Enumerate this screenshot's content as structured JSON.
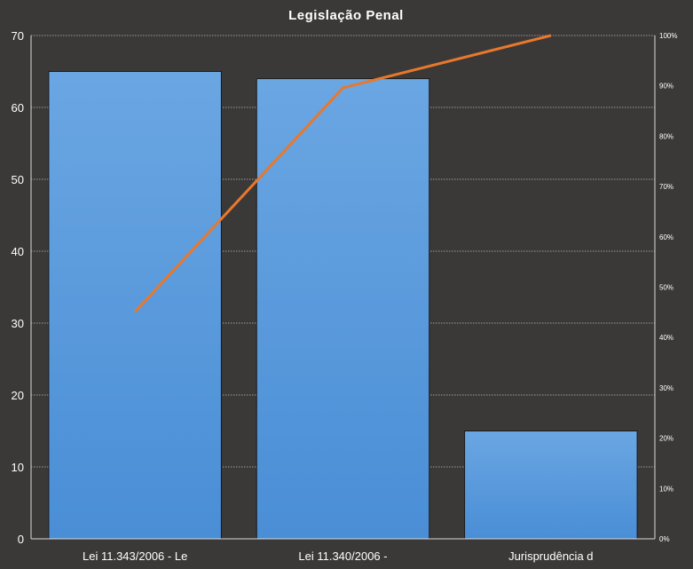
{
  "chart_data": {
    "type": "bar",
    "title": "Legislação Penal",
    "categories": [
      "Lei 11.343/2006 - Le",
      "Lei 11.340/2006 -",
      "Jurisprudência d"
    ],
    "series": [
      {
        "type": "bar",
        "axis": "left",
        "values": [
          65,
          64,
          15
        ]
      },
      {
        "type": "line",
        "axis": "right",
        "values": [
          45.1,
          89.6,
          100
        ]
      }
    ],
    "ylim": [
      0,
      70
    ],
    "yticks": [
      "0",
      "10",
      "20",
      "30",
      "40",
      "50",
      "60",
      "70"
    ],
    "y2lim": [
      0,
      100
    ],
    "y2ticks": [
      "0%",
      "10%",
      "20%",
      "30%",
      "40%",
      "50%",
      "60%",
      "70%",
      "80%",
      "90%",
      "100%"
    ],
    "grid": true,
    "colors": {
      "bar": "#4a8ed6",
      "bar_light": "#6aa6e2",
      "line": "#e8782c",
      "background": "#3b3938"
    }
  }
}
